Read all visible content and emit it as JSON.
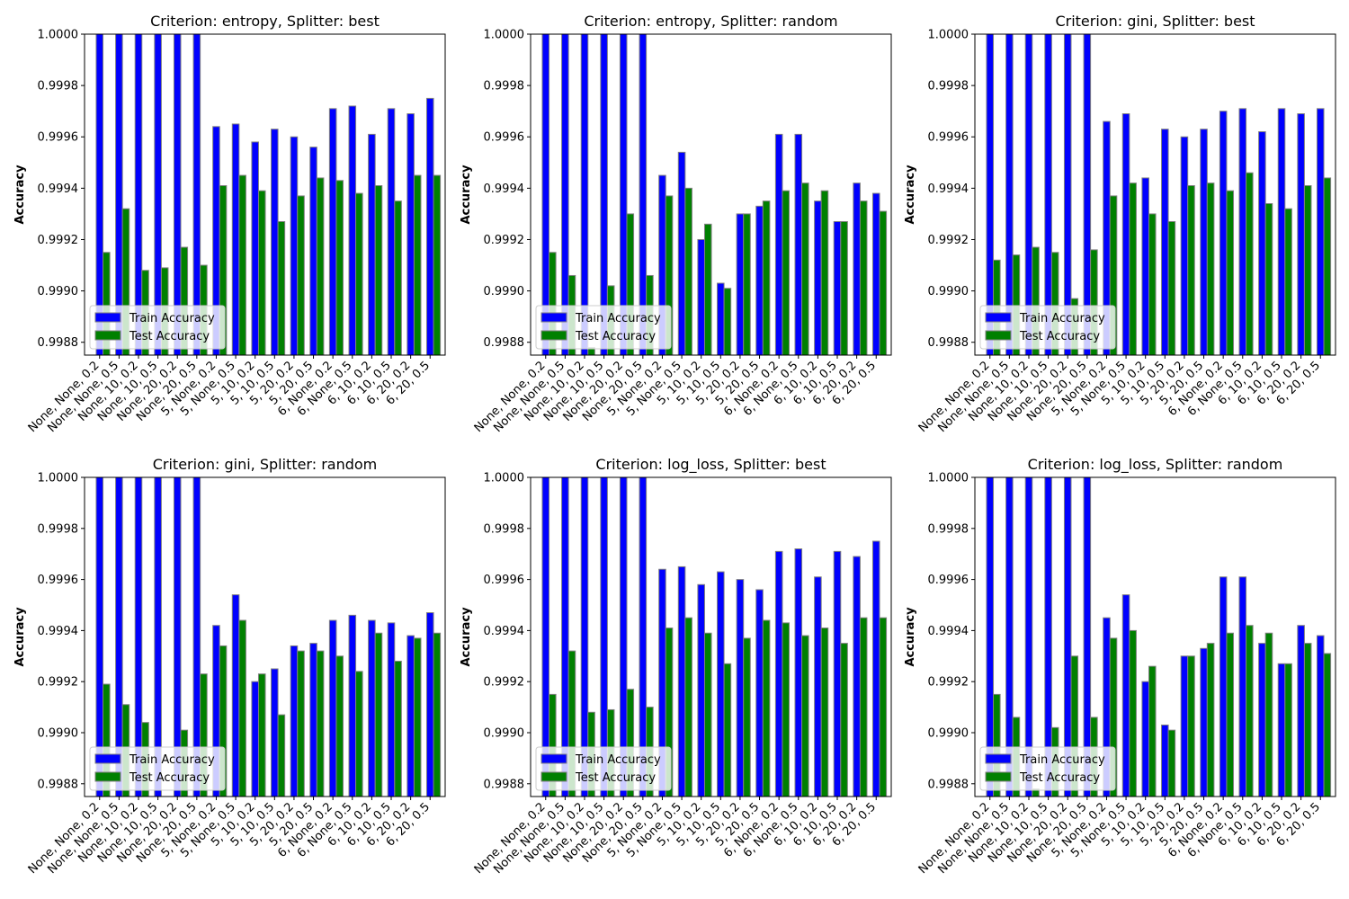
{
  "colors": {
    "train": "#0000ff",
    "test": "#008000",
    "edge": "#808080"
  },
  "chart_data": [
    {
      "type": "bar",
      "title": "Criterion: entropy, Splitter: best",
      "ylabel": "Accuracy",
      "categories": [
        "None, None, 0.2",
        "None, None, 0.5",
        "None, 10, 0.2",
        "None, 10, 0.5",
        "None, 20, 0.2",
        "None, 20, 0.5",
        "5, None, 0.2",
        "5, None, 0.5",
        "5, 10, 0.2",
        "5, 10, 0.5",
        "5, 20, 0.2",
        "5, 20, 0.5",
        "6, None, 0.2",
        "6, None, 0.5",
        "6, 10, 0.2",
        "6, 10, 0.5",
        "6, 20, 0.2",
        "6, 20, 0.5"
      ],
      "ylim": [
        0.99875,
        1.0
      ],
      "yticks": [
        "0.9988",
        "0.9990",
        "0.9992",
        "0.9994",
        "0.9996",
        "0.9998",
        "1.0000"
      ],
      "legend": [
        "Train Accuracy",
        "Test Accuracy"
      ],
      "legend_position": "lower-left",
      "series": [
        {
          "name": "Train Accuracy",
          "values": [
            1.0,
            1.0,
            1.0,
            1.0,
            1.0,
            1.0,
            0.99964,
            0.99965,
            0.99958,
            0.99963,
            0.9996,
            0.99956,
            0.99971,
            0.99972,
            0.99961,
            0.99971,
            0.99969,
            0.99975
          ]
        },
        {
          "name": "Test Accuracy",
          "values": [
            0.99915,
            0.99932,
            0.99908,
            0.99909,
            0.99917,
            0.9991,
            0.99941,
            0.99945,
            0.99939,
            0.99927,
            0.99937,
            0.99944,
            0.99943,
            0.99938,
            0.99941,
            0.99935,
            0.99945,
            0.99945
          ]
        }
      ]
    },
    {
      "type": "bar",
      "title": "Criterion: entropy, Splitter: random",
      "ylabel": "Accuracy",
      "categories": [
        "None, None, 0.2",
        "None, None, 0.5",
        "None, 10, 0.2",
        "None, 10, 0.5",
        "None, 20, 0.2",
        "None, 20, 0.5",
        "5, None, 0.2",
        "5, None, 0.5",
        "5, 10, 0.2",
        "5, 10, 0.5",
        "5, 20, 0.2",
        "5, 20, 0.5",
        "6, None, 0.2",
        "6, None, 0.5",
        "6, 10, 0.2",
        "6, 10, 0.5",
        "6, 20, 0.2",
        "6, 20, 0.5"
      ],
      "ylim": [
        0.99875,
        1.0
      ],
      "yticks": [
        "0.9988",
        "0.9990",
        "0.9992",
        "0.9994",
        "0.9996",
        "0.9998",
        "1.0000"
      ],
      "legend": [
        "Train Accuracy",
        "Test Accuracy"
      ],
      "legend_position": "lower-left",
      "series": [
        {
          "name": "Train Accuracy",
          "values": [
            1.0,
            1.0,
            1.0,
            1.0,
            1.0,
            1.0,
            0.99945,
            0.99954,
            0.9992,
            0.99903,
            0.9993,
            0.99933,
            0.99961,
            0.99961,
            0.99935,
            0.99927,
            0.99942,
            0.99938
          ]
        },
        {
          "name": "Test Accuracy",
          "values": [
            0.99915,
            0.99906,
            0.99878,
            0.99902,
            0.9993,
            0.99906,
            0.99937,
            0.9994,
            0.99926,
            0.99901,
            0.9993,
            0.99935,
            0.99939,
            0.99942,
            0.99939,
            0.99927,
            0.99935,
            0.99931
          ]
        }
      ]
    },
    {
      "type": "bar",
      "title": "Criterion: gini, Splitter: best",
      "ylabel": "Accuracy",
      "categories": [
        "None, None, 0.2",
        "None, None, 0.5",
        "None, 10, 0.2",
        "None, 10, 0.5",
        "None, 20, 0.2",
        "None, 20, 0.5",
        "5, None, 0.2",
        "5, None, 0.5",
        "5, 10, 0.2",
        "5, 10, 0.5",
        "5, 20, 0.2",
        "5, 20, 0.5",
        "6, None, 0.2",
        "6, None, 0.5",
        "6, 10, 0.2",
        "6, 10, 0.5",
        "6, 20, 0.2",
        "6, 20, 0.5"
      ],
      "ylim": [
        0.99875,
        1.0
      ],
      "yticks": [
        "0.9988",
        "0.9990",
        "0.9992",
        "0.9994",
        "0.9996",
        "0.9998",
        "1.0000"
      ],
      "legend": [
        "Train Accuracy",
        "Test Accuracy"
      ],
      "legend_position": "lower-left",
      "series": [
        {
          "name": "Train Accuracy",
          "values": [
            1.0,
            1.0,
            1.0,
            1.0,
            1.0,
            1.0,
            0.99966,
            0.99969,
            0.99944,
            0.99963,
            0.9996,
            0.99963,
            0.9997,
            0.99971,
            0.99962,
            0.99971,
            0.99969,
            0.99971
          ]
        },
        {
          "name": "Test Accuracy",
          "values": [
            0.99912,
            0.99914,
            0.99917,
            0.99915,
            0.99897,
            0.99916,
            0.99937,
            0.99942,
            0.9993,
            0.99927,
            0.99941,
            0.99942,
            0.99939,
            0.99946,
            0.99934,
            0.99932,
            0.99941,
            0.99944
          ]
        }
      ]
    },
    {
      "type": "bar",
      "title": "Criterion: gini, Splitter: random",
      "ylabel": "Accuracy",
      "categories": [
        "None, None, 0.2",
        "None, None, 0.5",
        "None, 10, 0.2",
        "None, 10, 0.5",
        "None, 20, 0.2",
        "None, 20, 0.5",
        "5, None, 0.2",
        "5, None, 0.5",
        "5, 10, 0.2",
        "5, 10, 0.5",
        "5, 20, 0.2",
        "5, 20, 0.5",
        "6, None, 0.2",
        "6, None, 0.5",
        "6, 10, 0.2",
        "6, 10, 0.5",
        "6, 20, 0.2",
        "6, 20, 0.5"
      ],
      "ylim": [
        0.99875,
        1.0
      ],
      "yticks": [
        "0.9988",
        "0.9990",
        "0.9992",
        "0.9994",
        "0.9996",
        "0.9998",
        "1.0000"
      ],
      "legend": [
        "Train Accuracy",
        "Test Accuracy"
      ],
      "legend_position": "lower-left",
      "series": [
        {
          "name": "Train Accuracy",
          "values": [
            1.0,
            1.0,
            1.0,
            1.0,
            1.0,
            1.0,
            0.99942,
            0.99954,
            0.9992,
            0.99925,
            0.99934,
            0.99935,
            0.99944,
            0.99946,
            0.99944,
            0.99943,
            0.99938,
            0.99947
          ]
        },
        {
          "name": "Test Accuracy",
          "values": [
            0.99919,
            0.99911,
            0.99904,
            0.99865,
            0.99901,
            0.99923,
            0.99934,
            0.99944,
            0.99923,
            0.99907,
            0.99932,
            0.99932,
            0.9993,
            0.99924,
            0.99939,
            0.99928,
            0.99937,
            0.99939
          ]
        }
      ]
    },
    {
      "type": "bar",
      "title": "Criterion: log_loss, Splitter: best",
      "ylabel": "Accuracy",
      "categories": [
        "None, None, 0.2",
        "None, None, 0.5",
        "None, 10, 0.2",
        "None, 10, 0.5",
        "None, 20, 0.2",
        "None, 20, 0.5",
        "5, None, 0.2",
        "5, None, 0.5",
        "5, 10, 0.2",
        "5, 10, 0.5",
        "5, 20, 0.2",
        "5, 20, 0.5",
        "6, None, 0.2",
        "6, None, 0.5",
        "6, 10, 0.2",
        "6, 10, 0.5",
        "6, 20, 0.2",
        "6, 20, 0.5"
      ],
      "ylim": [
        0.99875,
        1.0
      ],
      "yticks": [
        "0.9988",
        "0.9990",
        "0.9992",
        "0.9994",
        "0.9996",
        "0.9998",
        "1.0000"
      ],
      "legend": [
        "Train Accuracy",
        "Test Accuracy"
      ],
      "legend_position": "lower-left",
      "series": [
        {
          "name": "Train Accuracy",
          "values": [
            1.0,
            1.0,
            1.0,
            1.0,
            1.0,
            1.0,
            0.99964,
            0.99965,
            0.99958,
            0.99963,
            0.9996,
            0.99956,
            0.99971,
            0.99972,
            0.99961,
            0.99971,
            0.99969,
            0.99975
          ]
        },
        {
          "name": "Test Accuracy",
          "values": [
            0.99915,
            0.99932,
            0.99908,
            0.99909,
            0.99917,
            0.9991,
            0.99941,
            0.99945,
            0.99939,
            0.99927,
            0.99937,
            0.99944,
            0.99943,
            0.99938,
            0.99941,
            0.99935,
            0.99945,
            0.99945
          ]
        }
      ]
    },
    {
      "type": "bar",
      "title": "Criterion: log_loss, Splitter: random",
      "ylabel": "Accuracy",
      "categories": [
        "None, None, 0.2",
        "None, None, 0.5",
        "None, 10, 0.2",
        "None, 10, 0.5",
        "None, 20, 0.2",
        "None, 20, 0.5",
        "5, None, 0.2",
        "5, None, 0.5",
        "5, 10, 0.2",
        "5, 10, 0.5",
        "5, 20, 0.2",
        "5, 20, 0.5",
        "6, None, 0.2",
        "6, None, 0.5",
        "6, 10, 0.2",
        "6, 10, 0.5",
        "6, 20, 0.2",
        "6, 20, 0.5"
      ],
      "ylim": [
        0.99875,
        1.0
      ],
      "yticks": [
        "0.9988",
        "0.9990",
        "0.9992",
        "0.9994",
        "0.9996",
        "0.9998",
        "1.0000"
      ],
      "legend": [
        "Train Accuracy",
        "Test Accuracy"
      ],
      "legend_position": "lower-left",
      "series": [
        {
          "name": "Train Accuracy",
          "values": [
            1.0,
            1.0,
            1.0,
            1.0,
            1.0,
            1.0,
            0.99945,
            0.99954,
            0.9992,
            0.99903,
            0.9993,
            0.99933,
            0.99961,
            0.99961,
            0.99935,
            0.99927,
            0.99942,
            0.99938
          ]
        },
        {
          "name": "Test Accuracy",
          "values": [
            0.99915,
            0.99906,
            0.99878,
            0.99902,
            0.9993,
            0.99906,
            0.99937,
            0.9994,
            0.99926,
            0.99901,
            0.9993,
            0.99935,
            0.99939,
            0.99942,
            0.99939,
            0.99927,
            0.99935,
            0.99931
          ]
        }
      ]
    }
  ]
}
